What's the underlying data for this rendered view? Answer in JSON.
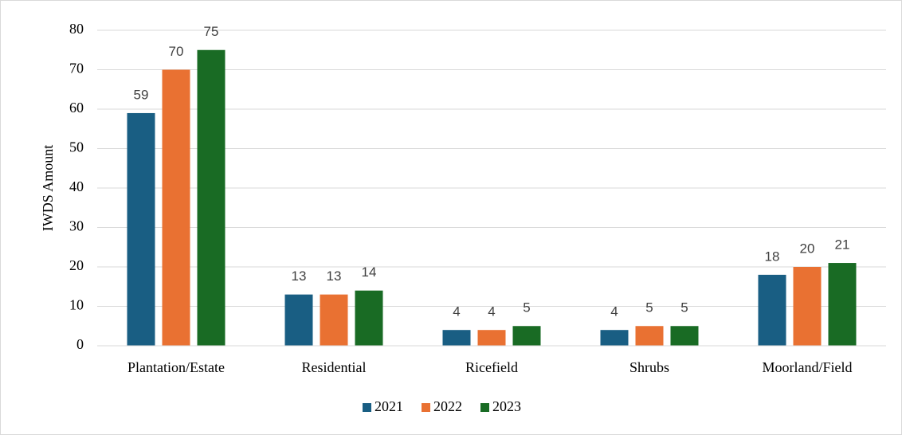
{
  "chart_data": {
    "type": "bar",
    "ylabel": "IWDS Amount",
    "categories": [
      "Plantation/Estate",
      "Residential",
      "Ricefield",
      "Shrubs",
      "Moorland/Field"
    ],
    "series": [
      {
        "name": "2021",
        "color": "#195e83",
        "values": [
          59,
          13,
          4,
          4,
          18
        ]
      },
      {
        "name": "2022",
        "color": "#e97132",
        "values": [
          70,
          13,
          4,
          5,
          20
        ]
      },
      {
        "name": "2023",
        "color": "#196b24",
        "values": [
          75,
          14,
          5,
          5,
          21
        ]
      }
    ],
    "ylim": [
      0,
      80
    ],
    "yticks": [
      0,
      10,
      20,
      30,
      40,
      50,
      60,
      70,
      80
    ],
    "grid": true,
    "legend": "bottom"
  }
}
